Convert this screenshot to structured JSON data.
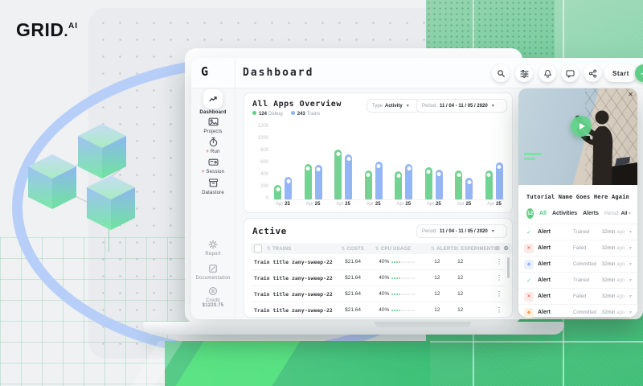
{
  "brand": {
    "name": "GRID",
    "dot": ".",
    "suffix": "AI"
  },
  "colors": {
    "accent_green": "#5ecd85",
    "accent_blue": "#8fb3f7",
    "alert_red": "#e0654f",
    "arc_blue": "#b7cff8"
  },
  "topbar": {
    "logo_letter": "G",
    "title": "Dashboard",
    "icons": [
      "search",
      "sliders",
      "bell",
      "chat",
      "share"
    ],
    "start": {
      "label": "Start",
      "plus": "+"
    }
  },
  "sidebar": {
    "items": [
      {
        "label": "Dashboard",
        "active": true
      },
      {
        "label": "Projects"
      },
      {
        "prefix": "+",
        "label": "Run"
      },
      {
        "prefix": "+",
        "label": "Session"
      },
      {
        "label": "Datastore"
      }
    ],
    "footer_items": [
      {
        "label": "Report"
      },
      {
        "label": "Documentation"
      }
    ],
    "credit": {
      "label": "Credit",
      "value": "$1220.75"
    }
  },
  "overview": {
    "title": "All Apps Overview",
    "legend": [
      {
        "count": "124",
        "label": "Debug",
        "color": "#5ecd85"
      },
      {
        "count": "243",
        "label": "Trains",
        "color": "#8fb3f7"
      }
    ],
    "type_filter": {
      "label": "Type",
      "value": "Activity",
      "caret": "▾"
    },
    "period_filter": {
      "label": "Period:",
      "value": "11 / 04 - 11 / 05 / 2020",
      "caret": "▾"
    }
  },
  "chart_data": {
    "type": "bar",
    "categories": [
      "Apr 25",
      "Apr 25",
      "Apr 25",
      "Apr 25",
      "Apr 25",
      "Apr 25",
      "Apr 25",
      "Apr 25"
    ],
    "series": [
      {
        "name": "Debug",
        "color": "#72d392",
        "values": [
          240,
          600,
          840,
          490,
          475,
          540,
          485,
          490
        ]
      },
      {
        "name": "Trains",
        "color": "#94b6f5",
        "values": [
          375,
          580,
          770,
          635,
          605,
          510,
          365,
          625
        ]
      }
    ],
    "ylim": [
      0,
      1200
    ],
    "yticks": [
      0,
      200,
      400,
      600,
      800,
      1000,
      1200
    ],
    "grid": false,
    "legend_position": "under-title"
  },
  "active": {
    "title": "Active",
    "period_filter": {
      "label": "Period:",
      "value": "11 / 04 - 11 / 05 / 2020",
      "caret": "▾"
    },
    "columns": [
      "TRAINS",
      "COSTS",
      "CPU USAGE",
      "ALERTS",
      "EXPERIMENTS"
    ],
    "rows": [
      {
        "name": "Train title zany-sweep-22",
        "cost": "$21.64",
        "cpu": "40%",
        "cpu_pct": 40,
        "alerts": "12",
        "experiments": "12"
      },
      {
        "name": "Train title zany-sweep-22",
        "cost": "$21.64",
        "cpu": "40%",
        "cpu_pct": 40,
        "alerts": "12",
        "experiments": "12"
      },
      {
        "name": "Train title zany-sweep-22",
        "cost": "$21.64",
        "cpu": "40%",
        "cpu_pct": 40,
        "alerts": "12",
        "experiments": "12"
      },
      {
        "name": "Train title zany-sweep-22",
        "cost": "$21.64",
        "cpu": "40%",
        "cpu_pct": 40,
        "alerts": "12",
        "experiments": "12"
      }
    ]
  },
  "tutorial": {
    "title": "Tutorial Name Goes Here Again",
    "close": "✕",
    "badge": "12",
    "tabs": [
      {
        "label": "All",
        "active": true
      },
      {
        "label": "Activities",
        "active": false
      },
      {
        "label": "Alerts",
        "active": false
      }
    ],
    "period": {
      "label": "Period:",
      "value": "All",
      "caret": "▾"
    },
    "alerts": [
      {
        "title": "Alert",
        "status": "Trained",
        "time": "32min",
        "time_suffix": "ago",
        "icon": "check"
      },
      {
        "title": "Alert",
        "status": "Failed",
        "time": "32min",
        "time_suffix": "ago",
        "icon": "cross"
      },
      {
        "title": "Alert",
        "status": "Committed",
        "time": "32min",
        "time_suffix": "ago",
        "icon": "diamond-blue"
      },
      {
        "title": "Alert",
        "status": "Trained",
        "time": "32min",
        "time_suffix": "ago",
        "icon": "check"
      },
      {
        "title": "Alert",
        "status": "Failed",
        "time": "32min",
        "time_suffix": "ago",
        "icon": "cross"
      },
      {
        "title": "Alert",
        "status": "Committed",
        "time": "32min",
        "time_suffix": "ago",
        "icon": "diamond-orange"
      }
    ]
  }
}
